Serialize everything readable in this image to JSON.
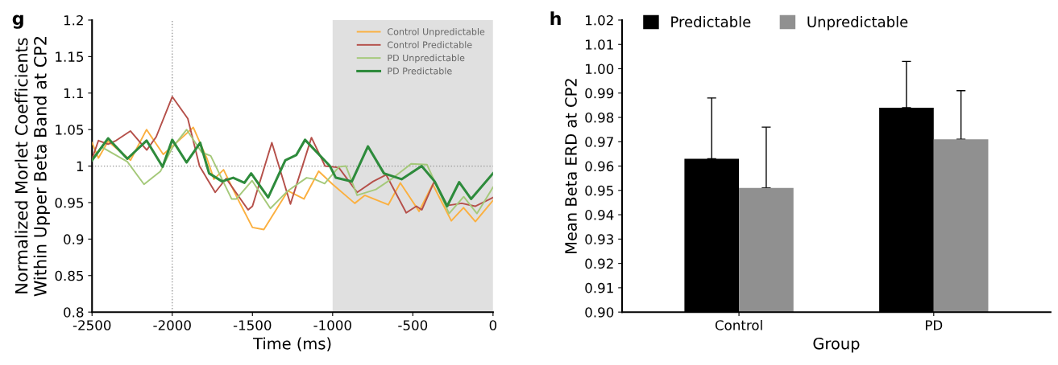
{
  "chart_data": [
    {
      "type": "line",
      "title": "g",
      "xlabel": "Time (ms)",
      "ylabel": "Normalized Morlet Coefficients\nWithin Upper Beta Band at CP2",
      "xlim": [
        -2500,
        0
      ],
      "ylim": [
        0.8,
        1.2
      ],
      "xticks": [
        -2500,
        -2000,
        -1500,
        -1000,
        -500,
        0
      ],
      "yticks": [
        0.8,
        0.85,
        0.9,
        0.95,
        1,
        1.05,
        1.1,
        1.15,
        1.2
      ],
      "grid": false,
      "legend": "top right",
      "marker": "none",
      "line_style": "solid",
      "ref_lines": [
        {
          "axis": "x",
          "value": -2000,
          "label": null,
          "color": "#999999",
          "line_style": "dotted"
        },
        {
          "axis": "y",
          "value": 1,
          "label": null,
          "color": "#999999",
          "line_style": "dotted"
        }
      ],
      "bands": [
        {
          "axis": "x",
          "from": -1000,
          "to": 0,
          "label": null,
          "color": "#e0e0e0"
        }
      ],
      "series": [
        {
          "name": "Control Unpredictable",
          "color": "#fbb040",
          "x": [
            -2500,
            -2460,
            -2400,
            -2260,
            -2160,
            -2056,
            -1954,
            -1869,
            -1783,
            -1740,
            -1680,
            -1596,
            -1500,
            -1429,
            -1279,
            -1179,
            -1087,
            -1000,
            -862,
            -800,
            -653,
            -578,
            -461,
            -376,
            -260,
            -184,
            -110,
            0
          ],
          "values": [
            1.032,
            1.011,
            1.034,
            1.008,
            1.05,
            1.016,
            1.036,
            1.053,
            1.01,
            0.982,
            0.995,
            0.957,
            0.916,
            0.913,
            0.966,
            0.955,
            0.993,
            0.975,
            0.949,
            0.96,
            0.947,
            0.977,
            0.938,
            0.975,
            0.925,
            0.943,
            0.924,
            0.953
          ]
        },
        {
          "name": "Control Predictable",
          "color": "#b5504a",
          "x": [
            -2500,
            -2460,
            -2400,
            -2350,
            -2261,
            -2159,
            -2100,
            -2000,
            -1903,
            -1830,
            -1732,
            -1664,
            -1527,
            -1500,
            -1379,
            -1263,
            -1132,
            -1047,
            -962,
            -847,
            -747,
            -666,
            -541,
            -478,
            -444,
            -366,
            -286,
            -195,
            -111,
            0
          ],
          "values": [
            1.01,
            1.035,
            1.03,
            1.035,
            1.048,
            1.022,
            1.04,
            1.095,
            1.065,
            1.0,
            0.964,
            0.983,
            0.94,
            0.945,
            1.032,
            0.948,
            1.039,
            1.0,
            0.998,
            0.964,
            0.979,
            0.988,
            0.936,
            0.945,
            0.94,
            0.979,
            0.946,
            0.949,
            0.945,
            0.957
          ]
        },
        {
          "name": "PD Unpredictable",
          "color": "#a5c97a",
          "x": [
            -2500,
            -2440,
            -2280,
            -2176,
            -2073,
            -2000,
            -1910,
            -1817,
            -1760,
            -1630,
            -1600,
            -1502,
            -1388,
            -1280,
            -1162,
            -1113,
            -1050,
            -960,
            -917,
            -847,
            -730,
            -635,
            -511,
            -412,
            -325,
            -274,
            -183,
            -100,
            0
          ],
          "values": [
            1.008,
            1.026,
            1.006,
            0.975,
            0.993,
            1.025,
            1.05,
            1.019,
            1.014,
            0.955,
            0.955,
            0.98,
            0.942,
            0.966,
            0.984,
            0.982,
            0.976,
            0.999,
            1.0,
            0.96,
            0.968,
            0.982,
            1.003,
            1.002,
            0.96,
            0.935,
            0.958,
            0.935,
            0.971
          ]
        },
        {
          "name": "PD Predictable",
          "color": "#2e8b3c",
          "x": [
            -2500,
            -2400,
            -2280,
            -2160,
            -2060,
            -2000,
            -1911,
            -1826,
            -1770,
            -1689,
            -1620,
            -1550,
            -1508,
            -1402,
            -1295,
            -1227,
            -1172,
            -1017,
            -980,
            -880,
            -780,
            -680,
            -570,
            -445,
            -364,
            -286,
            -211,
            -137,
            0
          ],
          "values": [
            1.008,
            1.038,
            1.01,
            1.035,
            0.999,
            1.036,
            1.005,
            1.032,
            0.99,
            0.979,
            0.984,
            0.977,
            0.99,
            0.957,
            1.008,
            1.015,
            1.036,
            1.0,
            0.984,
            0.979,
            1.027,
            0.99,
            0.982,
            1.0,
            0.979,
            0.945,
            0.978,
            0.955,
            0.99
          ]
        }
      ]
    },
    {
      "type": "bar",
      "title": "h",
      "xlabel": "Group",
      "ylabel": "Mean Beta ERD at CP2",
      "categories": [
        "Control",
        "PD"
      ],
      "ylim": [
        0.9,
        1.02
      ],
      "yticks": [
        {
          "value": 0.9,
          "label": "0.90"
        },
        {
          "value": 0.91,
          "label": "0.91"
        },
        {
          "value": 0.92,
          "label": "0.92"
        },
        {
          "value": 0.93,
          "label": "0.93"
        },
        {
          "value": 0.94,
          "label": "0.94"
        },
        {
          "value": 0.95,
          "label": "0.95"
        },
        {
          "value": 0.96,
          "label": "0.96"
        },
        {
          "value": 0.97,
          "label": "0.97"
        },
        {
          "value": 0.98,
          "label": "0.98"
        },
        {
          "value": 0.99,
          "label": "0.99"
        },
        {
          "value": 1.0,
          "label": "1.00"
        },
        {
          "value": 1.01,
          "label": "1.01"
        },
        {
          "value": 1.02,
          "label": "1.02"
        }
      ],
      "grid": false,
      "legend": "top left",
      "series": [
        {
          "name": "Predictable",
          "color": "#000000",
          "values": [
            0.963,
            0.984
          ],
          "errors": [
            [
              0.963,
              0.988
            ],
            [
              0.984,
              1.003
            ]
          ]
        },
        {
          "name": "Unpredictable",
          "color": "#909090",
          "values": [
            0.951,
            0.971
          ],
          "errors": [
            [
              0.951,
              0.976
            ],
            [
              0.971,
              0.991
            ]
          ]
        }
      ]
    }
  ]
}
